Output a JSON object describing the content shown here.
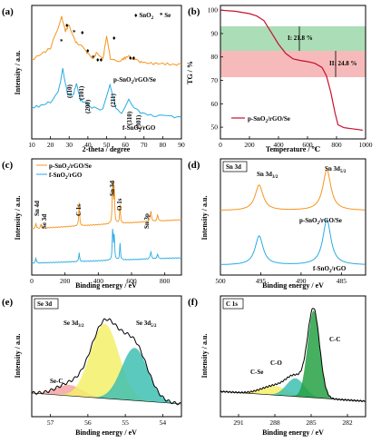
{
  "colors": {
    "orange": "#f7941d",
    "blue": "#29abe2",
    "red": "#c8102e",
    "green": "#8fd19e",
    "pink": "#f4a3a3",
    "yellow": "#f4f06a",
    "teal": "#3fbfb3",
    "dkgreen": "#26a144"
  },
  "panels": {
    "a": {
      "label": "(a)",
      "xlabel": "2-theta / degree",
      "ylabel": "Intensity / a.u.",
      "xticks": [
        "10",
        "20",
        "30",
        "40",
        "50",
        "60",
        "70",
        "80",
        "90"
      ],
      "legend": [
        {
          "sym": "♦",
          "text": "SnO",
          "sub": "2"
        },
        {
          "sym": "*",
          "text": "Se"
        }
      ],
      "series_labels": [
        {
          "text": "p-SnO",
          "sub": "2",
          "rest": "/rGO/Se"
        },
        {
          "text": "f-SnO",
          "sub": "2",
          "rest": "/rGO"
        }
      ],
      "peaks": [
        "(110)",
        "(101)",
        "(200)",
        "(211)",
        "(310)",
        "(301)"
      ]
    },
    "b": {
      "label": "(b)",
      "xlabel": "Temperature / ℃",
      "ylabel": "TG / %",
      "xticks": [
        "0",
        "200",
        "400",
        "600",
        "800",
        "1000"
      ],
      "yticks": [
        "50",
        "60",
        "70",
        "80",
        "90",
        "100"
      ],
      "annot1": "I: 21.8 %",
      "annot2": "II: 24.8 %",
      "legend": {
        "text": "p-SnO",
        "sub": "2",
        "rest": "/rGO/Se"
      }
    },
    "c": {
      "label": "(c)",
      "xlabel": "Binding energy / eV",
      "ylabel": "Intensity / a.u.",
      "xticks": [
        "0",
        "200",
        "400",
        "600",
        "800"
      ],
      "legend": [
        {
          "text": "p-SnO",
          "sub": "2",
          "rest": "/rGO/Se"
        },
        {
          "text": "f-SnO",
          "sub": "2",
          "rest": "/rGO"
        }
      ],
      "peaks": [
        "Sn 4d",
        "Se 3d",
        "C 1s",
        "Sn 3d",
        "O 1s",
        "Sn 3p"
      ]
    },
    "d": {
      "label": "(d)",
      "title": "Sn 3d",
      "xlabel": "Binding energy / eV",
      "ylabel": "Intensity / a.u.",
      "xticks": [
        "500",
        "495",
        "490",
        "485"
      ],
      "peak1": {
        "text": "Sn 3d",
        "sub": "3/2"
      },
      "peak2": {
        "text": "Sn 3d",
        "sub": "5/2"
      },
      "s1": {
        "text": "p-SnO",
        "sub": "2",
        "rest": "/rGO/Se"
      },
      "s2": {
        "text": "f-SnO",
        "sub": "2",
        "rest": "/rGO"
      }
    },
    "e": {
      "label": "(e)",
      "title": "Se 3d",
      "xlabel": "Binding energy / eV",
      "ylabel": "Intensity / a.u.",
      "xticks": [
        "57",
        "56",
        "55",
        "54"
      ],
      "peaks": [
        {
          "text": "Se-C"
        },
        {
          "text": "Se 3d",
          "sub": "3/2"
        },
        {
          "text": "Se 3d",
          "sub": "5/2"
        }
      ]
    },
    "f": {
      "label": "(f)",
      "title": "C 1s",
      "xlabel": "Binding energy / eV",
      "ylabel": "Intensity / a.u.",
      "xticks": [
        "291",
        "288",
        "285",
        "282"
      ],
      "peaks": [
        "C-Se",
        "C-O",
        "C-C"
      ]
    }
  },
  "chart_data": [
    {
      "type": "line",
      "panel": "a",
      "xlim": [
        10,
        90
      ],
      "series": [
        {
          "name": "p-SnO2/rGO/Se",
          "x": [
            10,
            15,
            20,
            23,
            26,
            28,
            30,
            33,
            35,
            38,
            40,
            43,
            45,
            48,
            50,
            52,
            55,
            58,
            60,
            62,
            65,
            68,
            70,
            75,
            80,
            85,
            90
          ],
          "y": [
            0.8,
            0.86,
            0.92,
            1.08,
            1.25,
            1.1,
            1.17,
            1.0,
            0.96,
            0.92,
            0.86,
            0.82,
            0.88,
            0.8,
            1.05,
            0.82,
            0.78,
            0.8,
            0.82,
            0.84,
            0.8,
            0.78,
            0.77,
            0.76,
            0.76,
            0.75,
            0.75
          ]
        },
        {
          "name": "f-SnO2/rGO",
          "x": [
            10,
            15,
            20,
            24,
            26.6,
            29,
            32,
            33.9,
            36,
            38,
            42,
            48,
            51.8,
            55,
            58,
            61.9,
            65,
            68,
            72,
            78,
            85,
            90
          ],
          "y": [
            0.3,
            0.32,
            0.36,
            0.45,
            0.7,
            0.45,
            0.42,
            0.55,
            0.38,
            0.35,
            0.3,
            0.28,
            0.55,
            0.28,
            0.25,
            0.38,
            0.3,
            0.24,
            0.22,
            0.21,
            0.2,
            0.2
          ]
        }
      ]
    },
    {
      "type": "line",
      "panel": "b",
      "xlim": [
        0,
        1000
      ],
      "ylim": [
        45,
        102
      ],
      "series": [
        {
          "name": "p-SnO2/rGO/Se",
          "x": [
            0,
            100,
            200,
            250,
            300,
            350,
            400,
            450,
            500,
            550,
            600,
            650,
            700,
            730,
            760,
            790,
            810,
            850,
            900,
            950,
            980
          ],
          "y": [
            100,
            99.5,
            98.5,
            97.5,
            95.5,
            90.5,
            85.5,
            81.5,
            79.2,
            78.5,
            78.0,
            77.3,
            75.5,
            72.0,
            65.0,
            56.0,
            51.0,
            49.8,
            49.4,
            49.0,
            48.7
          ]
        }
      ]
    },
    {
      "type": "line",
      "panel": "c",
      "xlim": [
        0,
        900
      ],
      "series": [
        {
          "name": "p-SnO2/rGO/Se"
        },
        {
          "name": "f-SnO2/rGO"
        }
      ]
    },
    {
      "type": "line",
      "panel": "d",
      "xlim": [
        500,
        482
      ],
      "series": [
        {
          "name": "p-SnO2/rGO/Se"
        },
        {
          "name": "f-SnO2/rGO"
        }
      ]
    },
    {
      "type": "area",
      "panel": "e",
      "xlim": [
        57.5,
        53.5
      ],
      "components": [
        {
          "name": "Se-C",
          "center": 56.5
        },
        {
          "name": "Se 3d3/2",
          "center": 55.5
        },
        {
          "name": "Se 3d5/2",
          "center": 54.7
        }
      ]
    },
    {
      "type": "area",
      "panel": "f",
      "xlim": [
        292.5,
        280.5
      ],
      "components": [
        {
          "name": "C-Se",
          "center": 288.0
        },
        {
          "name": "C-O",
          "center": 286.3
        },
        {
          "name": "C-C",
          "center": 284.8
        }
      ]
    }
  ]
}
